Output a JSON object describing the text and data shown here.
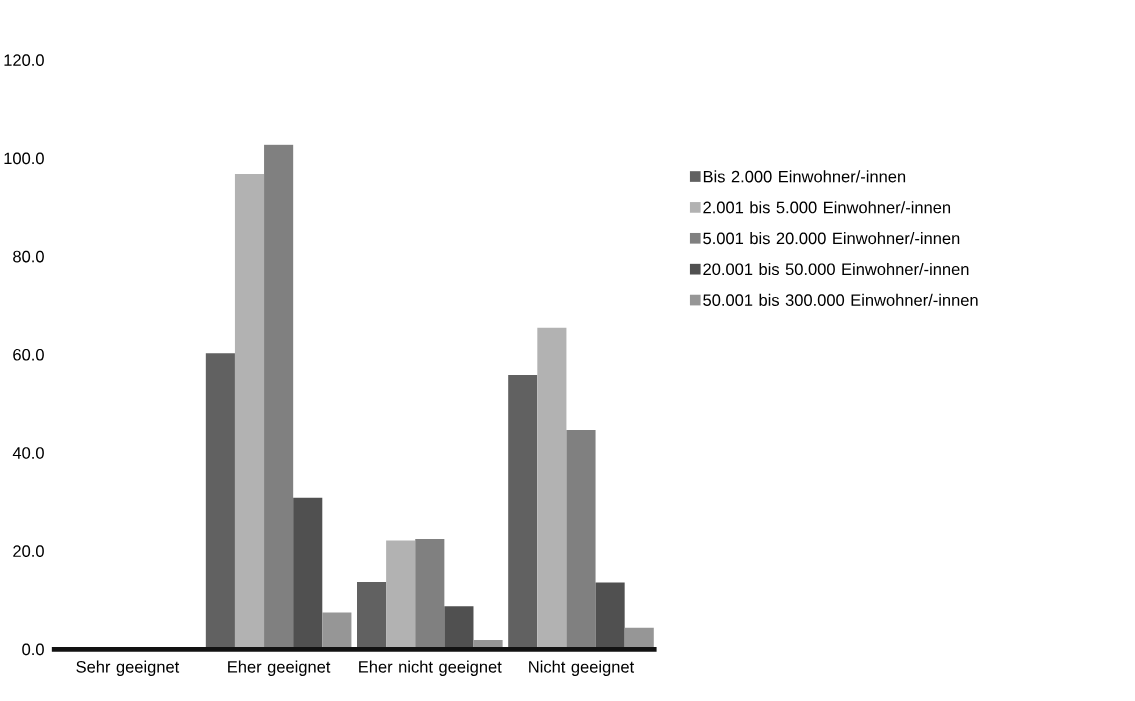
{
  "chart_data": {
    "type": "bar",
    "categories": [
      "Sehr geeignet",
      "Eher geeignet",
      "Eher nicht geeignet",
      "Nicht geeignet"
    ],
    "series": [
      {
        "name": "Bis 2.000 Einwohner/-innen",
        "color": "#616161",
        "values": [
          0,
          60.3,
          13.7,
          55.9
        ]
      },
      {
        "name": "2.001 bis 5.000 Einwohner/-innen",
        "color": "#b2b2b2",
        "values": [
          0,
          96.8,
          22.2,
          65.5
        ]
      },
      {
        "name": "5.001 bis 20.000 Einwohner/-innen",
        "color": "#808080",
        "values": [
          0,
          102.8,
          22.5,
          44.7
        ]
      },
      {
        "name": "20.001 bis 50.000 Einwohner/-innen",
        "color": "#505050",
        "values": [
          0,
          30.9,
          8.8,
          13.6
        ]
      },
      {
        "name": "50.001 bis 300.000 Einwohner/-innen",
        "color": "#969696",
        "values": [
          0,
          7.5,
          1.9,
          4.4
        ]
      }
    ],
    "ylim": [
      0,
      120
    ],
    "yticks": [
      {
        "value": 0,
        "label": "0.0"
      },
      {
        "value": 20,
        "label": "20.0"
      },
      {
        "value": 40,
        "label": "40.0"
      },
      {
        "value": 60,
        "label": "60.0"
      },
      {
        "value": 80,
        "label": "80.0"
      },
      {
        "value": 100,
        "label": "100.0"
      },
      {
        "value": 120,
        "label": "120.0"
      }
    ],
    "legend": "right"
  }
}
